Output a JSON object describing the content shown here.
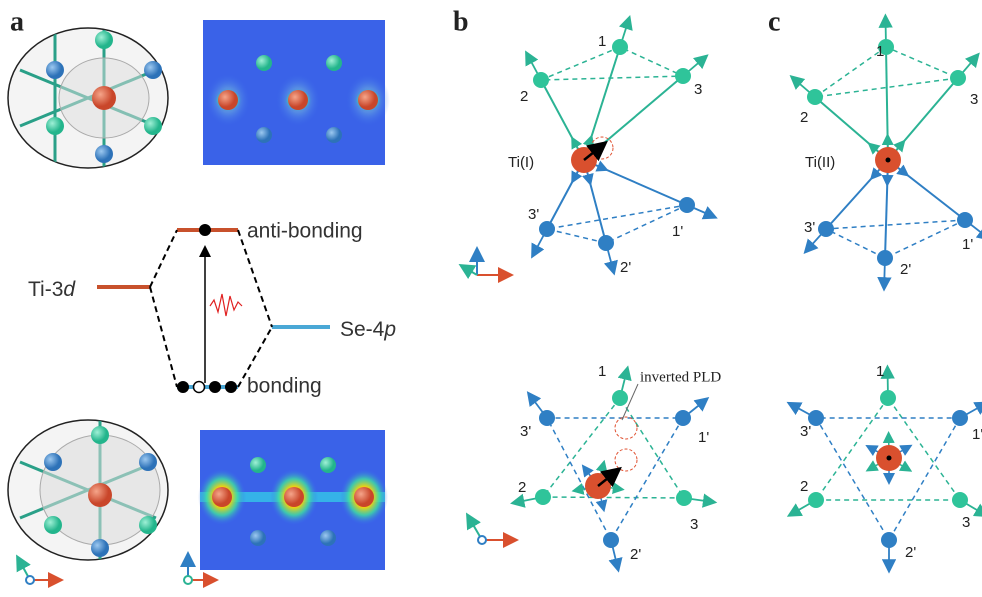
{
  "panel_labels": [
    "a",
    "b",
    "c"
  ],
  "energy_diagram": {
    "ti_level": {
      "text": "Ti-3",
      "italic": "d"
    },
    "se_level": {
      "text": "Se-4",
      "italic": "p"
    },
    "antibonding": "anti-bonding",
    "bonding": "bonding"
  },
  "structures": [
    {
      "center_label": "Ti(I)",
      "atom_labels": [
        "1",
        "2",
        "3",
        "1'",
        "2'",
        "3'"
      ]
    },
    {
      "annotation": "inverted PLD",
      "atom_labels": [
        "1",
        "2",
        "3",
        "1'",
        "2'",
        "3'"
      ]
    },
    {
      "center_label": "Ti(II)",
      "atom_labels": [
        "1",
        "2",
        "3",
        "1'",
        "2'",
        "3'"
      ]
    },
    {
      "atom_labels": [
        "1",
        "2",
        "3",
        "1'",
        "2'",
        "3'"
      ]
    }
  ]
}
